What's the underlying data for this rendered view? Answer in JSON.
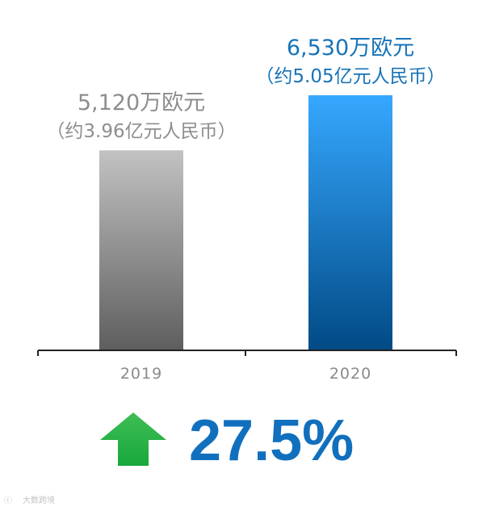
{
  "chart_data": {
    "type": "bar",
    "categories": [
      "2019",
      "2020"
    ],
    "values": [
      5120,
      6530
    ],
    "unit": "万欧元",
    "data_labels": [
      {
        "main": "5,120万欧元",
        "sub": "（约3.96亿元人民币）"
      },
      {
        "main": "6,530万欧元",
        "sub": "（约5.05亿元人民币）"
      }
    ],
    "title": "",
    "xlabel": "",
    "ylabel": "",
    "ylim": [
      0,
      6530
    ],
    "grid": false,
    "legend": "none",
    "bar_colors": [
      {
        "top": "#c2c2c2",
        "bottom": "#5e5e5e"
      },
      {
        "top": "#36a8ff",
        "bottom": "#014a85"
      }
    ],
    "label_colors": [
      "#8e8e8e",
      "#1773b8"
    ],
    "axis_color": "#222222"
  },
  "growth": {
    "value": "27.5%",
    "direction": "up",
    "color": "#1170bd",
    "arrow_color_top": "#3fbd53",
    "arrow_color_bottom": "#17a83d"
  },
  "watermark": {
    "text": "大数跨境"
  }
}
